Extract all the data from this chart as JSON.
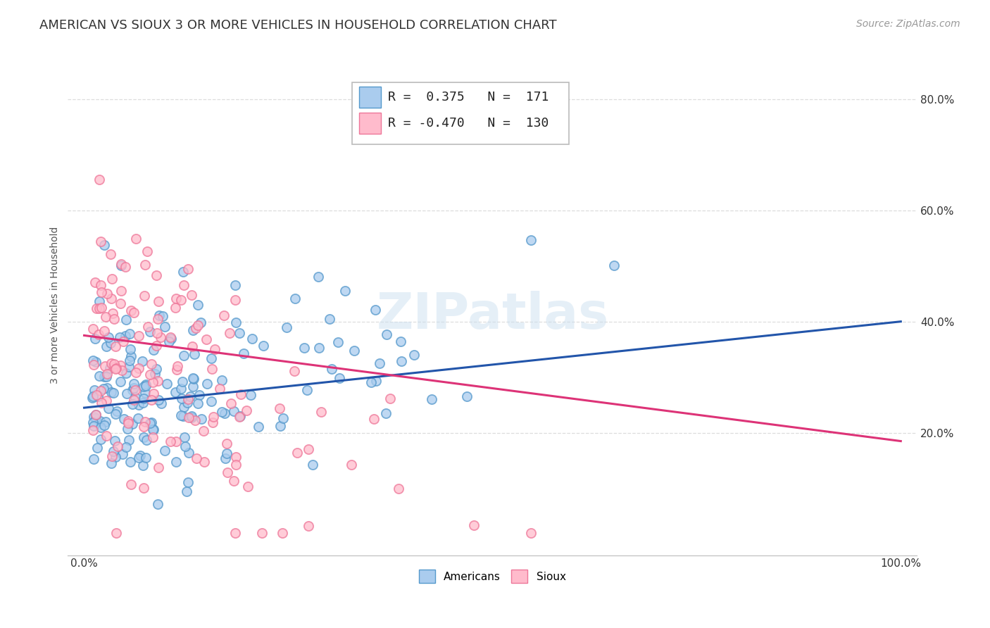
{
  "title": "AMERICAN VS SIOUX 3 OR MORE VEHICLES IN HOUSEHOLD CORRELATION CHART",
  "source": "Source: ZipAtlas.com",
  "ylabel": "3 or more Vehicles in Household",
  "xlim": [
    -0.02,
    1.02
  ],
  "ylim": [
    -0.02,
    0.88
  ],
  "xtick_labels": [
    "0.0%",
    "100.0%"
  ],
  "ytick_positions": [
    0.2,
    0.4,
    0.6,
    0.8
  ],
  "watermark": "ZIPatlas",
  "americans_color": "#aaccee",
  "americans_edge": "#5599cc",
  "sioux_color": "#ffbbcc",
  "sioux_edge": "#ee7799",
  "americans_R": 0.375,
  "americans_N": 171,
  "sioux_R": -0.47,
  "sioux_N": 130,
  "americans_seed": 12,
  "sioux_seed": 99,
  "title_fontsize": 13,
  "axis_label_fontsize": 10,
  "tick_fontsize": 11,
  "legend_fontsize": 13,
  "source_fontsize": 10,
  "watermark_fontsize": 52,
  "americans_line_color": "#2255aa",
  "sioux_line_color": "#dd3377",
  "grid_color": "#dddddd",
  "bg_color": "#ffffff",
  "americans_line_start_y": 0.245,
  "americans_line_end_y": 0.4,
  "sioux_line_start_y": 0.375,
  "sioux_line_end_y": 0.185
}
